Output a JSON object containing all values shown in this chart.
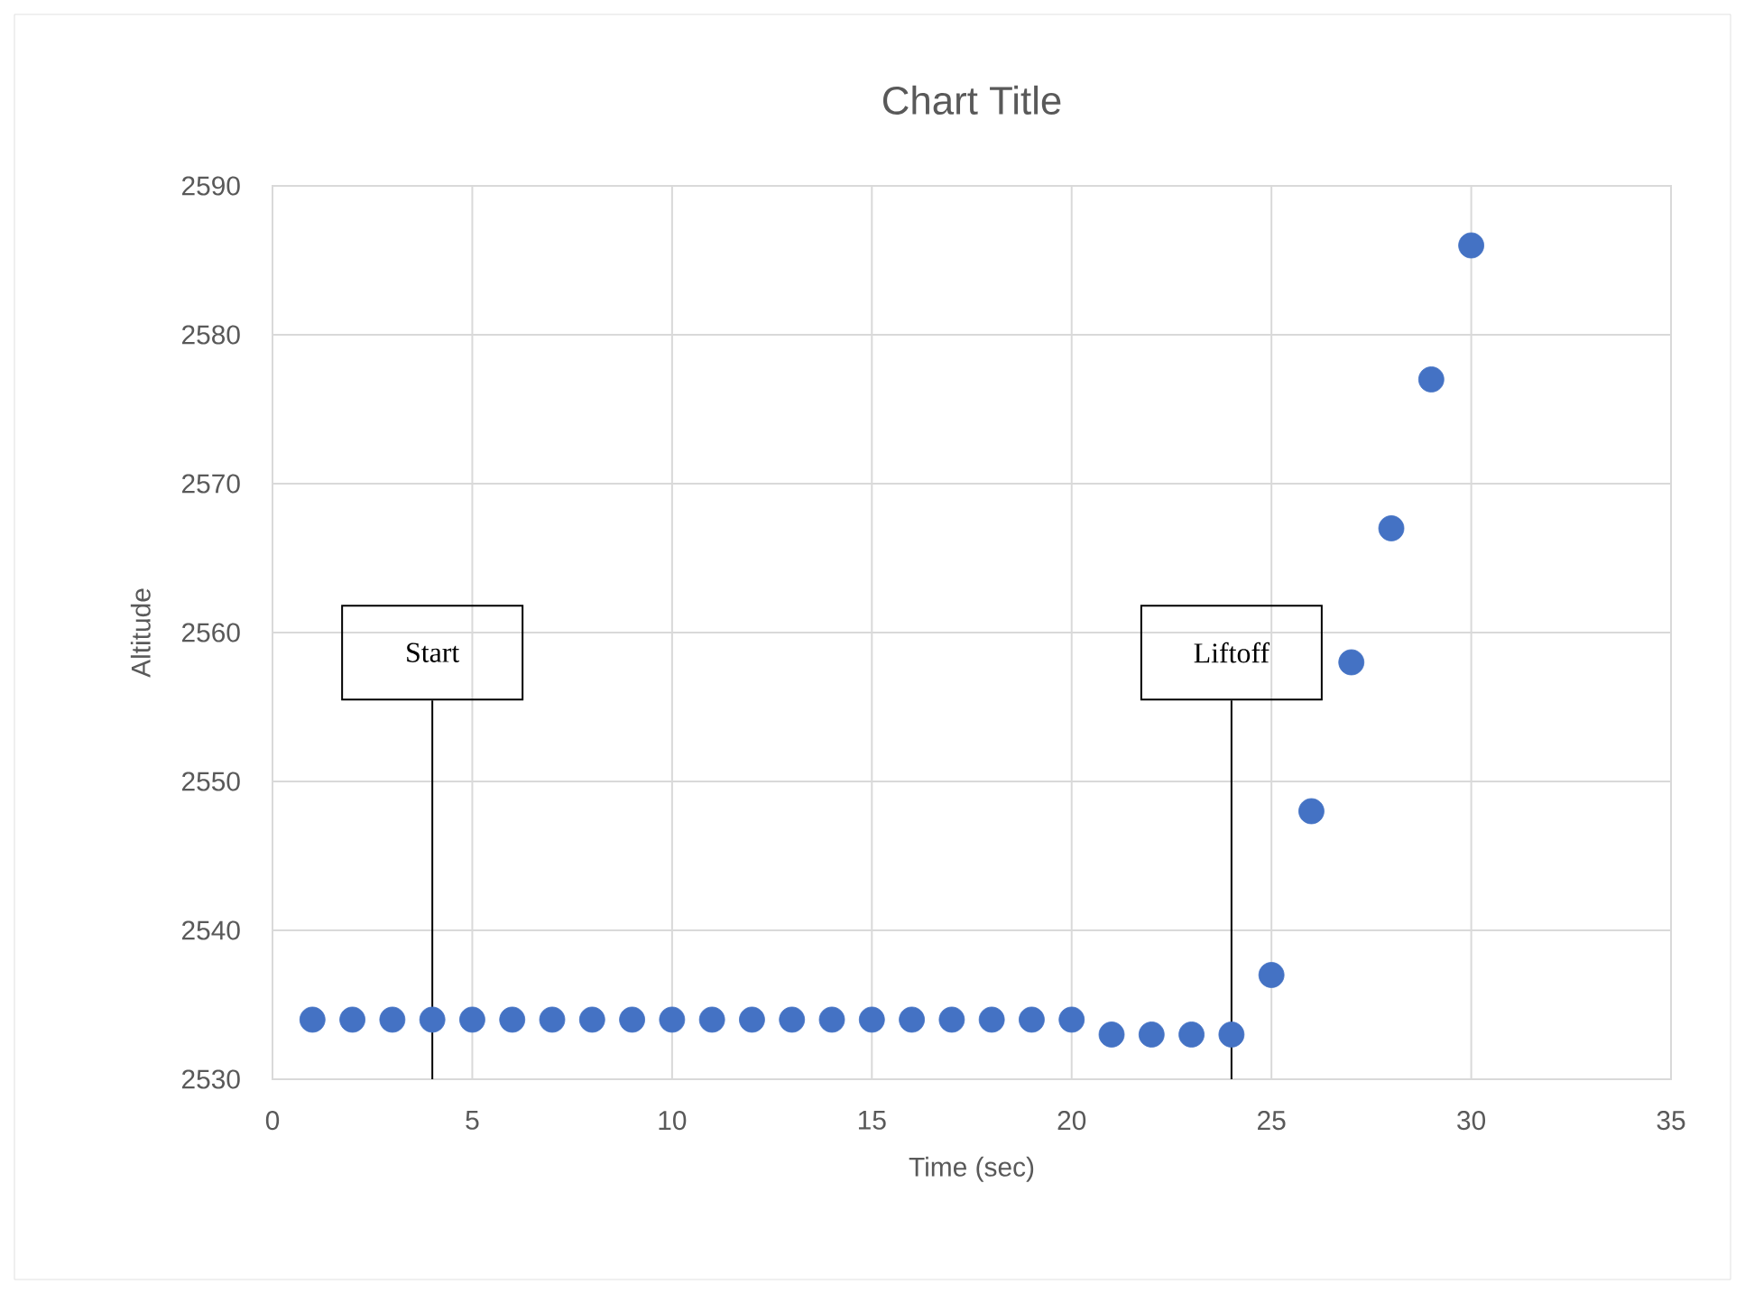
{
  "chart_data": {
    "type": "scatter",
    "title": "Chart Title",
    "xlabel": "Time (sec)",
    "ylabel": "Altitude",
    "x": [
      1,
      2,
      3,
      4,
      5,
      6,
      7,
      8,
      9,
      10,
      11,
      12,
      13,
      14,
      15,
      16,
      17,
      18,
      19,
      20,
      21,
      22,
      23,
      24,
      25,
      26,
      27,
      28,
      29,
      30
    ],
    "series": [
      {
        "color": "#4472c4",
        "values": [
          2534,
          2534,
          2534,
          2534,
          2534,
          2534,
          2534,
          2534,
          2534,
          2534,
          2534,
          2534,
          2534,
          2534,
          2534,
          2534,
          2534,
          2534,
          2534,
          2534,
          2533,
          2533,
          2533,
          2533,
          2537,
          2548,
          2558,
          2567,
          2577,
          2586
        ]
      }
    ],
    "xlim": [
      0,
      35
    ],
    "ylim": [
      2530,
      2590
    ],
    "xticks": [
      0,
      5,
      10,
      15,
      20,
      25,
      30,
      35
    ],
    "yticks": [
      2530,
      2540,
      2550,
      2560,
      2570,
      2580,
      2590
    ],
    "grid": true,
    "marker": "circle",
    "ref_lines": [
      {
        "axis": "x",
        "value": 4,
        "label": "Start",
        "color": "#000000"
      },
      {
        "axis": "x",
        "value": 24,
        "label": "Liftoff",
        "color": "#000000"
      }
    ]
  }
}
